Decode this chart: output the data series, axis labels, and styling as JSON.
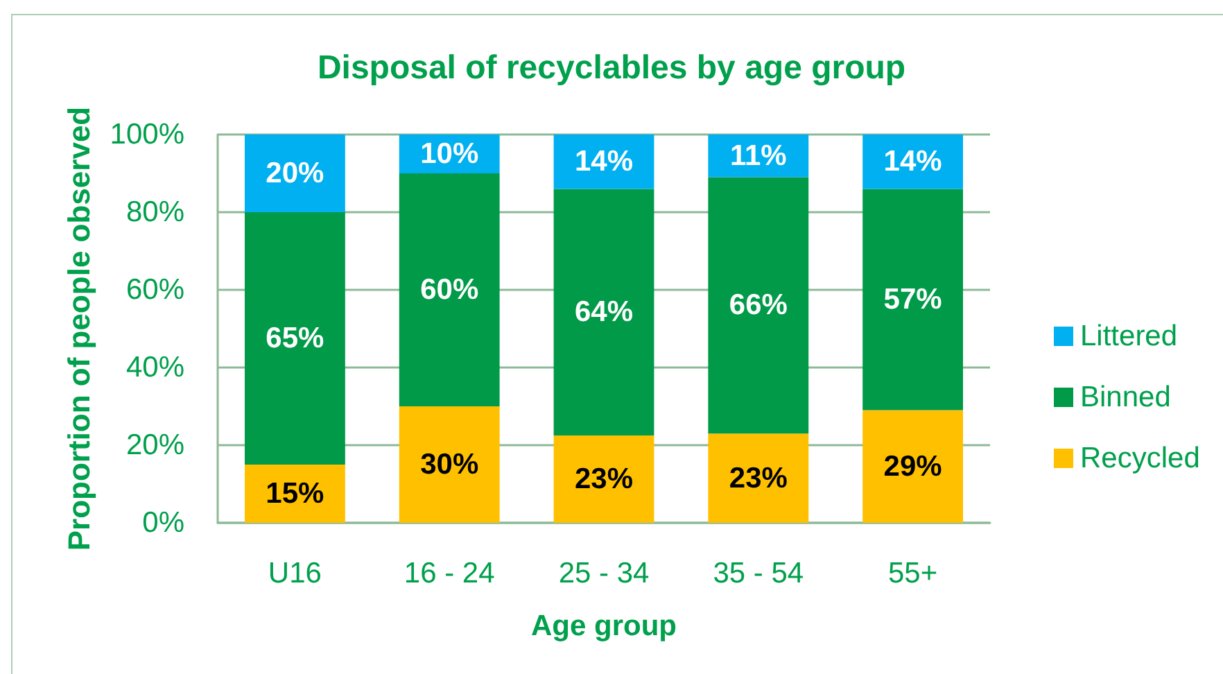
{
  "chart_data": {
    "type": "bar",
    "title": "Disposal of recyclables by age group",
    "xlabel": "Age group",
    "ylabel": "Proportion of people observed",
    "categories": [
      "U16",
      "16 - 24",
      "25 - 34",
      "35 - 54",
      "55+"
    ],
    "stacked": true,
    "series": [
      {
        "name": "Recycled",
        "color": "#ffc000",
        "values": [
          15,
          30,
          22.5,
          23,
          29
        ],
        "value_labels": [
          "15%",
          "30%",
          "23%",
          "23%",
          "29%"
        ]
      },
      {
        "name": "Binned",
        "color": "#009a48",
        "values": [
          65,
          60,
          63.5,
          66,
          57
        ],
        "value_labels": [
          "65%",
          "60%",
          "64%",
          "66%",
          "57%"
        ]
      },
      {
        "name": "Littered",
        "color": "#00b0f0",
        "values": [
          20,
          10,
          14,
          11,
          14
        ],
        "value_labels": [
          "20%",
          "10%",
          "14%",
          "11%",
          "14%"
        ]
      }
    ],
    "ylim": [
      0,
      100
    ],
    "yticks": [
      {
        "value": 0,
        "label": "0%"
      },
      {
        "value": 20,
        "label": "20%"
      },
      {
        "value": 40,
        "label": "40%"
      },
      {
        "value": 60,
        "label": "60%"
      },
      {
        "value": 80,
        "label": "80%"
      },
      {
        "value": 100,
        "label": "100%"
      }
    ],
    "grid": "y",
    "legend": "right"
  }
}
